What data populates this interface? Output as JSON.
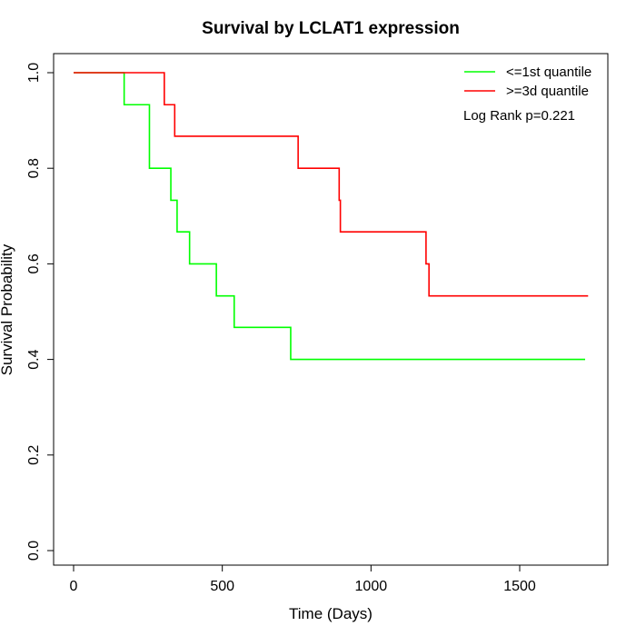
{
  "chart_data": {
    "type": "line",
    "subtype": "kaplan-meier step curve",
    "title": "Survival by LCLAT1 expression",
    "xlabel": "Time (Days)",
    "ylabel": "Survival Probability",
    "xlim": [
      0,
      1780
    ],
    "ylim": [
      0,
      1.0
    ],
    "x_ticks": [
      0,
      500,
      1000,
      1500
    ],
    "x_tick_labels": [
      "0",
      "500",
      "1000",
      "1500"
    ],
    "y_ticks": [
      0.0,
      0.2,
      0.4,
      0.6,
      0.8,
      1.0
    ],
    "y_tick_labels": [
      "0.0",
      "0.2",
      "0.4",
      "0.6",
      "0.8",
      "1.0"
    ],
    "grid": false,
    "legend_position": "top-right",
    "annotation": "Log Rank p=0.221",
    "series": [
      {
        "name": "<=1st quantile",
        "color": "#00ff00",
        "x": [
          0,
          170,
          255,
          327,
          348,
          390,
          480,
          540,
          730,
          1720
        ],
        "y": [
          1.0,
          0.933,
          0.8,
          0.733,
          0.667,
          0.6,
          0.533,
          0.467,
          0.4,
          0.4
        ]
      },
      {
        "name": ">=3d quantile",
        "color": "#ff0000",
        "x": [
          0,
          305,
          340,
          755,
          893,
          897,
          1185,
          1195,
          1730
        ],
        "y": [
          1.0,
          0.933,
          0.867,
          0.8,
          0.733,
          0.667,
          0.6,
          0.533,
          0.533
        ]
      }
    ]
  }
}
